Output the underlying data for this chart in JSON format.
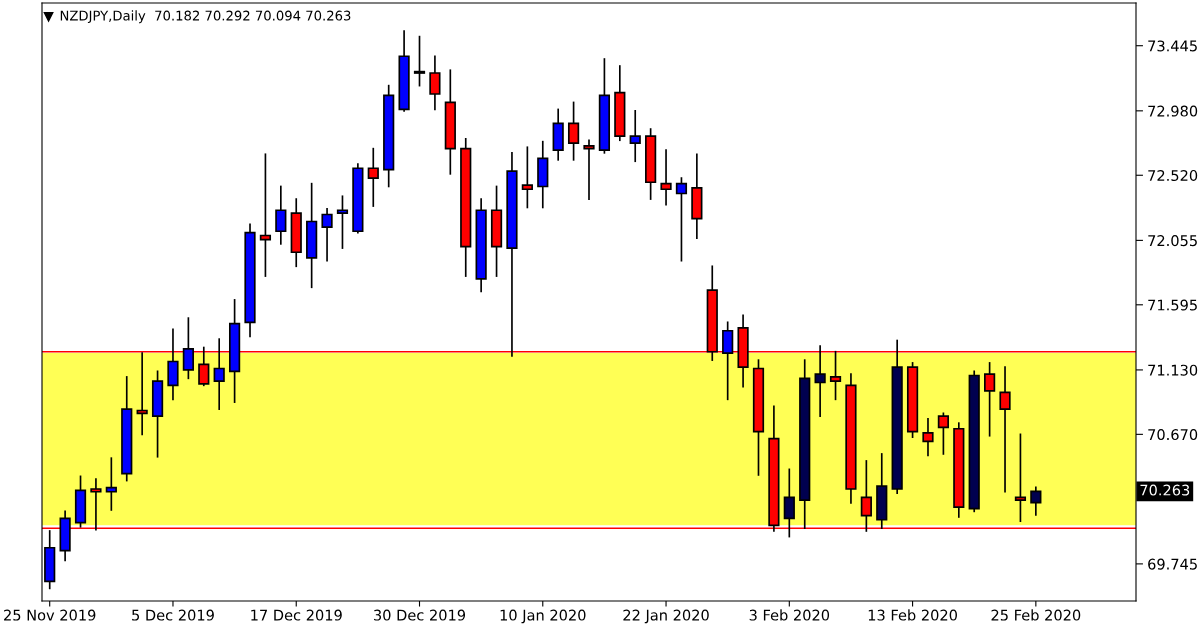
{
  "chart_data": {
    "type": "candlestick",
    "title": "NZDJPY,Daily  70.182 70.292 70.094 70.263",
    "categories": [
      "25 Nov 2019",
      null,
      null,
      null,
      null,
      null,
      null,
      null,
      "5 Dec 2019",
      null,
      null,
      null,
      null,
      null,
      null,
      null,
      "17 Dec 2019",
      null,
      null,
      null,
      null,
      null,
      null,
      null,
      "30 Dec 2019",
      null,
      null,
      null,
      null,
      null,
      null,
      null,
      "10 Jan 2020",
      null,
      null,
      null,
      null,
      null,
      null,
      null,
      "22 Jan 2020",
      null,
      null,
      null,
      null,
      null,
      null,
      null,
      "3 Feb 2020",
      null,
      null,
      null,
      null,
      null,
      null,
      null,
      "13 Feb 2020",
      null,
      null,
      null,
      null,
      null,
      null,
      null,
      "25 Feb 2020",
      null,
      null,
      null,
      null,
      null,
      null
    ],
    "ohlc": [
      [
        69.62,
        69.98,
        69.57,
        69.86
      ],
      [
        69.84,
        70.12,
        69.77,
        70.07
      ],
      [
        70.04,
        70.37,
        70.01,
        70.27
      ],
      [
        70.28,
        70.35,
        69.99,
        70.26
      ],
      [
        70.26,
        70.5,
        70.13,
        70.29
      ],
      [
        70.39,
        71.08,
        70.34,
        70.85
      ],
      [
        70.84,
        71.25,
        70.67,
        70.82
      ],
      [
        70.8,
        71.12,
        70.51,
        71.05
      ],
      [
        71.02,
        71.42,
        70.92,
        71.19
      ],
      [
        71.13,
        71.5,
        71.07,
        71.28
      ],
      [
        71.17,
        71.29,
        71.02,
        71.03
      ],
      [
        71.05,
        71.35,
        70.85,
        71.14
      ],
      [
        71.12,
        71.63,
        70.9,
        71.46
      ],
      [
        71.47,
        72.17,
        71.37,
        72.11
      ],
      [
        72.09,
        72.67,
        71.8,
        72.06
      ],
      [
        72.12,
        72.44,
        72.03,
        72.27
      ],
      [
        72.25,
        72.35,
        71.87,
        71.97
      ],
      [
        71.93,
        72.46,
        71.72,
        72.19
      ],
      [
        72.15,
        72.28,
        71.91,
        72.24
      ],
      [
        72.25,
        72.37,
        72.0,
        72.27
      ],
      [
        72.12,
        72.6,
        72.11,
        72.57
      ],
      [
        72.57,
        72.71,
        72.3,
        72.5
      ],
      [
        72.56,
        73.16,
        72.44,
        73.09
      ],
      [
        72.99,
        73.55,
        72.98,
        73.37
      ],
      [
        73.25,
        73.51,
        73.16,
        73.26
      ],
      [
        73.25,
        73.37,
        72.99,
        73.1
      ],
      [
        73.04,
        73.27,
        72.53,
        72.71
      ],
      [
        72.71,
        72.78,
        71.8,
        72.01
      ],
      [
        71.78,
        72.35,
        71.69,
        72.27
      ],
      [
        72.27,
        72.44,
        71.8,
        72.01
      ],
      [
        72.0,
        72.68,
        71.23,
        72.55
      ],
      [
        72.45,
        72.72,
        72.29,
        72.42
      ],
      [
        72.44,
        72.76,
        72.29,
        72.64
      ],
      [
        72.7,
        72.99,
        72.63,
        72.89
      ],
      [
        72.89,
        73.04,
        72.63,
        72.75
      ],
      [
        72.73,
        72.77,
        72.35,
        72.71
      ],
      [
        72.7,
        73.35,
        72.68,
        73.09
      ],
      [
        73.11,
        73.3,
        72.77,
        72.8
      ],
      [
        72.75,
        72.98,
        72.62,
        72.8
      ],
      [
        72.8,
        72.85,
        72.35,
        72.47
      ],
      [
        72.46,
        72.7,
        72.31,
        72.42
      ],
      [
        72.39,
        72.5,
        71.91,
        72.46
      ],
      [
        72.43,
        72.67,
        72.07,
        72.21
      ],
      [
        71.7,
        71.87,
        71.2,
        71.26
      ],
      [
        71.25,
        71.47,
        70.92,
        71.41
      ],
      [
        71.43,
        71.52,
        71.01,
        71.15
      ],
      [
        71.14,
        71.2,
        70.38,
        70.69
      ],
      [
        70.64,
        70.87,
        69.98,
        70.02
      ],
      [
        70.07,
        70.42,
        69.94,
        70.22
      ],
      [
        70.2,
        71.2,
        70.0,
        71.07
      ],
      [
        71.04,
        71.3,
        70.8,
        71.1
      ],
      [
        71.08,
        71.26,
        70.92,
        71.05
      ],
      [
        71.02,
        71.1,
        70.18,
        70.28
      ],
      [
        70.22,
        70.48,
        69.98,
        70.09
      ],
      [
        70.06,
        70.53,
        70.0,
        70.3
      ],
      [
        70.28,
        71.34,
        70.25,
        71.15
      ],
      [
        71.15,
        71.18,
        70.65,
        70.69
      ],
      [
        70.68,
        70.78,
        70.52,
        70.62
      ],
      [
        70.8,
        70.82,
        70.53,
        70.72
      ],
      [
        70.71,
        70.75,
        70.08,
        70.15
      ],
      [
        70.14,
        71.12,
        70.12,
        71.09
      ],
      [
        71.1,
        71.18,
        70.66,
        70.98
      ],
      [
        70.97,
        71.15,
        70.26,
        70.85
      ],
      [
        70.22,
        70.67,
        70.05,
        70.2
      ],
      [
        70.182,
        70.292,
        70.094,
        70.263
      ],
      null,
      null,
      null,
      null,
      null,
      null
    ],
    "colors": [
      "#0000ff",
      "#0000ff",
      "#0000ff",
      "#ff0000",
      "#0000ff",
      "#0000ff",
      "#ff0000",
      "#0000ff",
      "#0000ff",
      "#0000ff",
      "#ff0000",
      "#0000ff",
      "#0000ff",
      "#0000ff",
      "#ff0000",
      "#0000ff",
      "#ff0000",
      "#0000ff",
      "#0000ff",
      "#0000ff",
      "#0000ff",
      "#ff0000",
      "#0000ff",
      "#0000ff",
      "#0000ff",
      "#ff0000",
      "#ff0000",
      "#ff0000",
      "#0000ff",
      "#ff0000",
      "#0000ff",
      "#ff0000",
      "#0000ff",
      "#0000ff",
      "#ff0000",
      "#ff0000",
      "#0000ff",
      "#ff0000",
      "#0000ff",
      "#ff0000",
      "#ff0000",
      "#0000ff",
      "#ff0000",
      "#ff0000",
      "#0000ff",
      "#ff0000",
      "#ff0000",
      "#ff0000",
      "#00004f",
      "#00004f",
      "#00004f",
      "#ff0000",
      "#ff0000",
      "#ff0000",
      "#00004f",
      "#00004f",
      "#ff0000",
      "#ff0000",
      "#ff0000",
      "#ff0000",
      "#00004f",
      "#ff0000",
      "#ff0000",
      "#ff0000",
      "#00004f",
      null,
      null,
      null,
      null,
      null,
      null
    ],
    "ylim": [
      69.48,
      73.75
    ],
    "yticks": [
      73.445,
      {
        "value": 72.98,
        "label": "72.980"
      },
      {
        "value": 72.52,
        "label": "72.520"
      },
      72.055,
      71.595,
      {
        "value": 71.13,
        "label": "71.130"
      },
      {
        "value": 70.67,
        "label": "70.670"
      },
      69.745
    ],
    "ref_lines": [
      {
        "axis": "y",
        "value": 71.26,
        "color": "#ff0000"
      },
      {
        "axis": "y",
        "value": 70.0,
        "color": "#ff0000"
      }
    ],
    "bands": [
      {
        "axis": "y",
        "from": 70.02,
        "to": 71.25,
        "color": "#ffff55"
      }
    ],
    "annotations": [
      "70.263"
    ]
  }
}
